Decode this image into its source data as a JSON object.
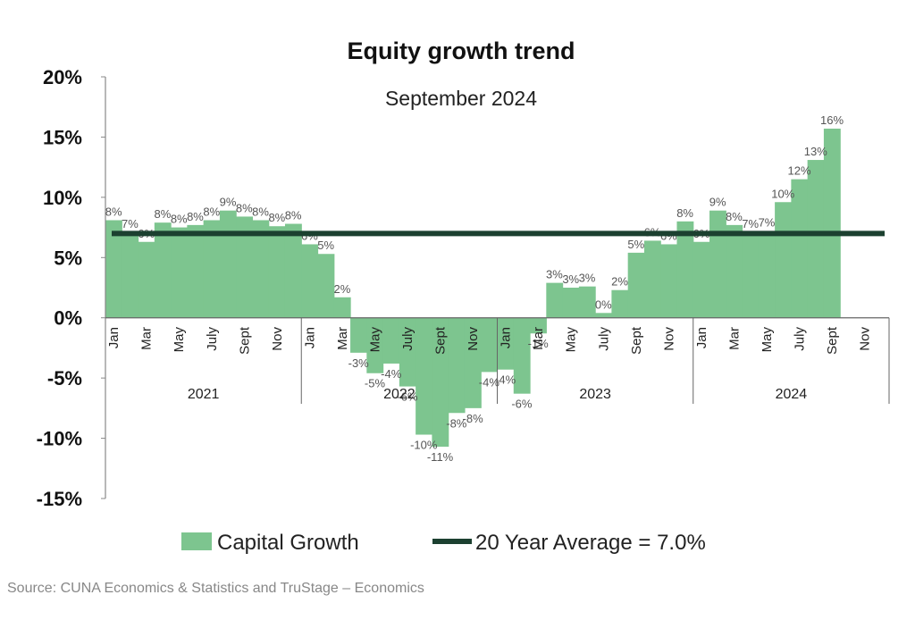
{
  "chart_data": {
    "type": "bar",
    "title": "Equity growth trend",
    "subtitle": "September 2024",
    "ylim": [
      -15,
      20
    ],
    "yticks": [
      "20%",
      "15%",
      "10%",
      "5%",
      "0%",
      "-5%",
      "-10%",
      "-15%"
    ],
    "ytick_values": [
      20,
      15,
      10,
      5,
      0,
      -5,
      -10,
      -15
    ],
    "years": [
      {
        "label": "2021",
        "months": 12
      },
      {
        "label": "2022",
        "months": 12
      },
      {
        "label": "2023",
        "months": 12
      },
      {
        "label": "2024",
        "months": 12
      }
    ],
    "month_labels": [
      "Jan",
      "",
      "Mar",
      "",
      "May",
      "",
      "July",
      "",
      "Sept",
      "",
      "Nov",
      ""
    ],
    "series": [
      {
        "name": "Capital Growth",
        "color": "#7dc58f",
        "values": [
          8.1,
          7.1,
          6.3,
          7.9,
          7.5,
          7.7,
          8.1,
          8.9,
          8.4,
          8.1,
          7.6,
          7.8,
          6.1,
          5.3,
          1.7,
          -2.9,
          -4.6,
          -3.8,
          -5.7,
          -9.7,
          -10.7,
          -7.9,
          -7.5,
          -4.5,
          -4.3,
          -6.3,
          -1.3,
          2.9,
          2.5,
          2.6,
          0.4,
          2.3,
          5.4,
          6.4,
          6.1,
          8.0,
          6.3,
          8.9,
          7.7,
          7.1,
          7.2,
          9.6,
          11.5,
          13.1,
          15.7
        ],
        "labels": [
          "8%",
          "7%",
          "6%",
          "8%",
          "8%",
          "8%",
          "8%",
          "9%",
          "8%",
          "8%",
          "8%",
          "8%",
          "6%",
          "5%",
          "2%",
          "-3%",
          "-5%",
          "-4%",
          "-6%",
          "-10%",
          "-11%",
          "-8%",
          "-8%",
          "-4%",
          "-4%",
          "-6%",
          "-1%",
          "3%",
          "3%",
          "3%",
          "0%",
          "2%",
          "5%",
          "6%",
          "6%",
          "8%",
          "6%",
          "9%",
          "8%",
          "7%",
          "7%",
          "10%",
          "12%",
          "13%",
          "16%"
        ]
      },
      {
        "name": "20 Year Average = 7.0%",
        "color": "#1c4030",
        "value": 7.0
      }
    ],
    "legend_position": "bottom",
    "grid": false
  },
  "source": "Source: CUNA Economics & Statistics and TruStage – Economics"
}
